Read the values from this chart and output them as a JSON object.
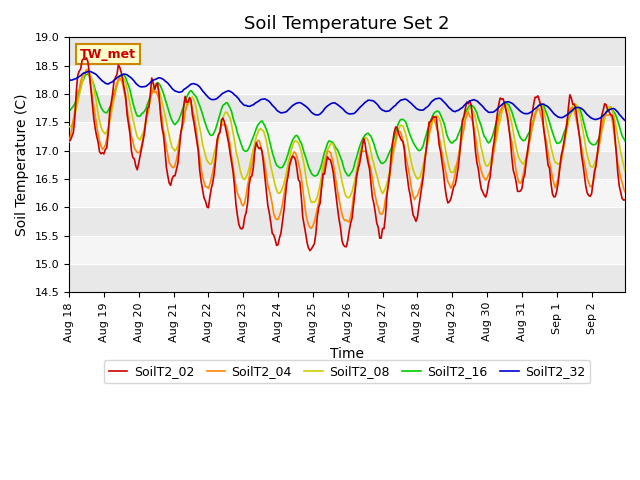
{
  "title": "Soil Temperature Set 2",
  "xlabel": "Time",
  "ylabel": "Soil Temperature (C)",
  "ylim": [
    14.5,
    19.0
  ],
  "colors": {
    "SoilT2_02": "#cc0000",
    "SoilT2_04": "#ff8800",
    "SoilT2_08": "#cccc00",
    "SoilT2_16": "#00cc00",
    "SoilT2_32": "#0000cc"
  },
  "annotation_text": "TW_met",
  "annotation_bg": "#ffffcc",
  "annotation_border": "#cc8800",
  "background_color": "#ffffff",
  "grid_color": "#e0e0e0",
  "x_tick_labels": [
    "Aug 18",
    "Aug 19",
    "Aug 20",
    "Aug 21",
    "Aug 22",
    "Aug 23",
    "Aug 24",
    "Aug 25",
    "Aug 26",
    "Aug 27",
    "Aug 28",
    "Aug 29",
    "Aug 30",
    "Aug 31",
    "Sep 1",
    "Sep 2"
  ],
  "n_points": 336,
  "title_fontsize": 13,
  "axis_fontsize": 10,
  "tick_fontsize": 8,
  "legend_fontsize": 9,
  "line_width": 1.2
}
